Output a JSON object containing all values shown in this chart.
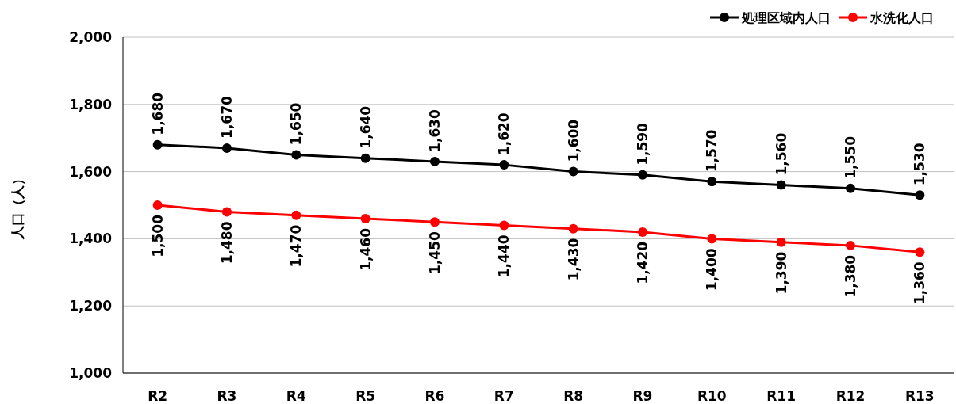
{
  "chart_data": {
    "type": "line",
    "ylabel": "人口（人）",
    "categories": [
      "R2",
      "R3",
      "R4",
      "R5",
      "R6",
      "R7",
      "R8",
      "R9",
      "R10",
      "R11",
      "R12",
      "R13"
    ],
    "series": [
      {
        "name": "処理区域内人口",
        "color": "#000000",
        "values": [
          1680,
          1670,
          1650,
          1640,
          1630,
          1620,
          1600,
          1590,
          1570,
          1560,
          1550,
          1530
        ],
        "value_labels": [
          "1,680",
          "1,670",
          "1,650",
          "1,640",
          "1,630",
          "1,620",
          "1,600",
          "1,590",
          "1,570",
          "1,560",
          "1,550",
          "1,530"
        ]
      },
      {
        "name": "水洗化人口",
        "color": "#ff0000",
        "values": [
          1500,
          1480,
          1470,
          1460,
          1450,
          1440,
          1430,
          1420,
          1400,
          1390,
          1380,
          1360
        ],
        "value_labels": [
          "1,500",
          "1,480",
          "1,470",
          "1,460",
          "1,450",
          "1,440",
          "1,430",
          "1,420",
          "1,400",
          "1,390",
          "1,380",
          "1,360"
        ]
      }
    ],
    "ylim": [
      1000,
      2000
    ],
    "yticks": [
      {
        "value": 1000,
        "label": "1,000"
      },
      {
        "value": 1200,
        "label": "1,200"
      },
      {
        "value": 1400,
        "label": "1,400"
      },
      {
        "value": 1600,
        "label": "1,600"
      },
      {
        "value": 1800,
        "label": "1,800"
      },
      {
        "value": 2000,
        "label": "2,000"
      }
    ],
    "grid": "y",
    "legend": "top right",
    "marker": "circle",
    "line_style": "solid"
  }
}
